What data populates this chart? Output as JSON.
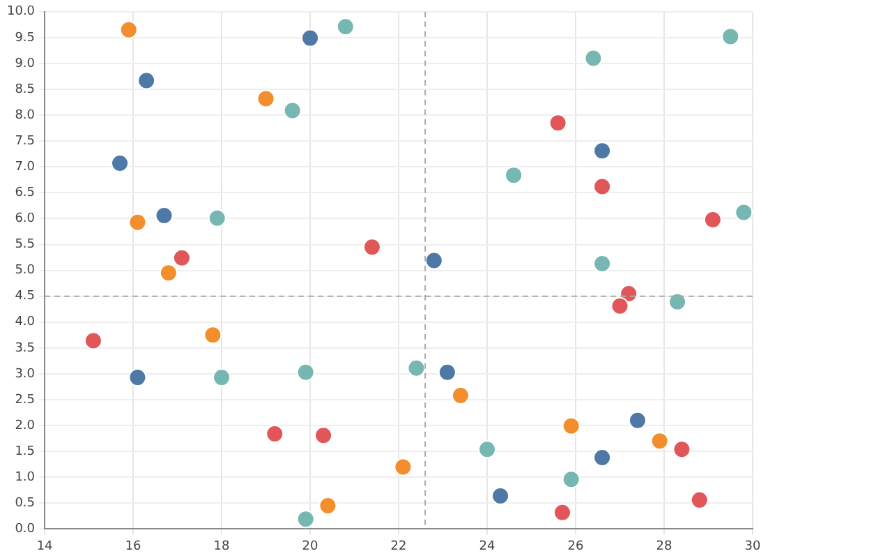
{
  "chart_data": {
    "type": "scatter",
    "xlim": [
      14,
      30
    ],
    "xticks": [
      14,
      16,
      18,
      20,
      22,
      24,
      26,
      28,
      30
    ],
    "ylim": [
      0,
      10
    ],
    "yticks": [
      {
        "value": 0,
        "label": "0.0"
      },
      {
        "value": 0.5,
        "label": "0.5"
      },
      {
        "value": 1,
        "label": "1.0"
      },
      {
        "value": 1.5,
        "label": "1.5"
      },
      {
        "value": 2,
        "label": "2.0"
      },
      {
        "value": 2.5,
        "label": "2.5"
      },
      {
        "value": 3,
        "label": "3.0"
      },
      {
        "value": 3.5,
        "label": "3.5"
      },
      {
        "value": 4,
        "label": "4.0"
      },
      {
        "value": 4.5,
        "label": "4.5"
      },
      {
        "value": 5,
        "label": "5.0"
      },
      {
        "value": 5.5,
        "label": "5.5"
      },
      {
        "value": 6,
        "label": "6.0"
      },
      {
        "value": 6.5,
        "label": "6.5"
      },
      {
        "value": 7,
        "label": "7.0"
      },
      {
        "value": 7.5,
        "label": "7.5"
      },
      {
        "value": 8,
        "label": "8.0"
      },
      {
        "value": 8.5,
        "label": "8.5"
      },
      {
        "value": 9,
        "label": "9.0"
      },
      {
        "value": 9.5,
        "label": "9.5"
      },
      {
        "value": 10,
        "label": "10.0"
      }
    ],
    "grid": true,
    "marker": "circle",
    "series": [
      {
        "color": "#4e79a7",
        "x": [
          16.3,
          20.0,
          15.7,
          16.7,
          22.8,
          16.1,
          23.1,
          26.6,
          27.4,
          26.6,
          24.3
        ],
        "values": [
          8.67,
          9.49,
          7.07,
          6.06,
          5.19,
          2.93,
          3.03,
          7.31,
          2.1,
          1.38,
          0.64
        ]
      },
      {
        "color": "#f28e2b",
        "x": [
          15.9,
          19.0,
          16.1,
          16.8,
          17.8,
          23.4,
          25.9,
          27.9,
          22.1,
          20.4
        ],
        "values": [
          9.65,
          8.32,
          5.93,
          4.95,
          3.75,
          2.58,
          1.99,
          1.7,
          1.2,
          0.45
        ]
      },
      {
        "color": "#e15759",
        "x": [
          17.1,
          21.4,
          25.6,
          26.6,
          29.1,
          27.2,
          27.0,
          15.1,
          19.2,
          20.3,
          28.4,
          28.8,
          25.7
        ],
        "values": [
          5.24,
          5.45,
          7.85,
          6.62,
          5.98,
          4.55,
          4.31,
          3.64,
          1.84,
          1.81,
          1.54,
          0.56,
          0.32
        ]
      },
      {
        "color": "#76b7b2",
        "x": [
          20.8,
          26.4,
          29.5,
          19.6,
          24.6,
          17.9,
          29.8,
          26.6,
          28.3,
          18.0,
          19.9,
          22.4,
          24.0,
          25.9,
          19.9
        ],
        "values": [
          9.71,
          9.1,
          9.52,
          8.09,
          6.84,
          6.01,
          6.12,
          5.13,
          4.39,
          2.93,
          3.03,
          3.11,
          1.54,
          0.96,
          0.19
        ]
      }
    ],
    "ref_lines": [
      {
        "axis": "x",
        "value": 22.6,
        "color": "#aaaaaa",
        "line_style": "dashed"
      },
      {
        "axis": "y",
        "value": 4.5,
        "color": "#aaaaaa",
        "line_style": "dashed"
      }
    ]
  }
}
